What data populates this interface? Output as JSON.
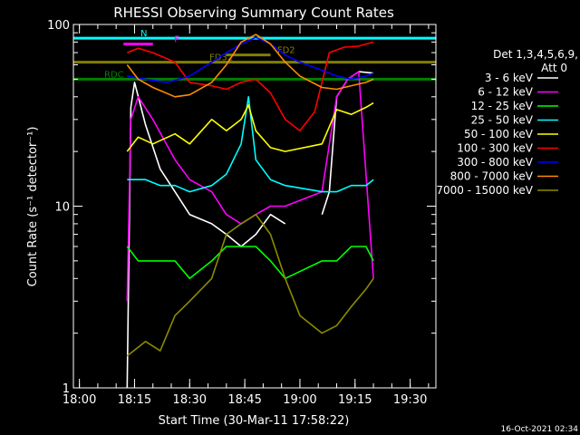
{
  "chart_data": {
    "type": "line",
    "title": "RHESSI Observing Summary Count Rates",
    "xlabel": "Start Time (30-Mar-11 17:58:22)",
    "ylabel": "Count Rate (s⁻¹ detector⁻¹)",
    "yscale": "log",
    "ylim": [
      1,
      100
    ],
    "xlim": [
      "17:58:22",
      "19:37:00"
    ],
    "x_ticks": [
      "18:00",
      "18:15",
      "18:30",
      "18:45",
      "19:00",
      "19:15",
      "19:30"
    ],
    "y_ticks": [
      "1",
      "10",
      "100"
    ],
    "legend_header": [
      "Det 1,3,4,5,6,9,",
      "Att 0"
    ],
    "legend_placement": "right",
    "timestamp": "16-Oct-2021 02:34",
    "grid": false,
    "series": [
      {
        "name": "3 - 6 keV",
        "color": "#ffffff",
        "points": [
          [
            "18:13",
            1.0
          ],
          [
            "18:14",
            35
          ],
          [
            "18:15",
            48
          ],
          [
            "18:18",
            28
          ],
          [
            "18:22",
            16
          ],
          [
            "18:26",
            12
          ],
          [
            "18:30",
            9
          ],
          [
            "18:36",
            8
          ],
          [
            "18:40",
            7
          ],
          [
            "18:44",
            6
          ],
          [
            "18:48",
            7
          ],
          [
            "18:52",
            9
          ],
          [
            "18:56",
            8
          ],
          [
            "19:00",
            null
          ],
          [
            "19:06",
            9
          ],
          [
            "19:08",
            12
          ],
          [
            "19:10",
            40
          ],
          [
            "19:13",
            50
          ],
          [
            "19:16",
            55
          ],
          [
            "19:20",
            54
          ]
        ]
      },
      {
        "name": "6 - 12 keV",
        "color": "#ff00ff",
        "points": [
          [
            "18:13",
            3
          ],
          [
            "18:14",
            30
          ],
          [
            "18:16",
            40
          ],
          [
            "18:20",
            30
          ],
          [
            "18:26",
            18
          ],
          [
            "18:30",
            14
          ],
          [
            "18:36",
            12
          ],
          [
            "18:40",
            9
          ],
          [
            "18:44",
            8
          ],
          [
            "18:48",
            9
          ],
          [
            "18:52",
            10
          ],
          [
            "18:56",
            10
          ],
          [
            "19:06",
            12
          ],
          [
            "19:10",
            40
          ],
          [
            "19:13",
            50
          ],
          [
            "19:16",
            55
          ],
          [
            "19:20",
            4
          ]
        ]
      },
      {
        "name": "12 - 25 keV",
        "color": "#00ff00",
        "points": [
          [
            "18:13",
            6
          ],
          [
            "18:16",
            5
          ],
          [
            "18:20",
            5
          ],
          [
            "18:26",
            5
          ],
          [
            "18:30",
            4
          ],
          [
            "18:36",
            5
          ],
          [
            "18:40",
            6
          ],
          [
            "18:44",
            6
          ],
          [
            "18:48",
            6
          ],
          [
            "18:52",
            5
          ],
          [
            "18:56",
            4
          ],
          [
            "19:06",
            5
          ],
          [
            "19:10",
            5
          ],
          [
            "19:14",
            6
          ],
          [
            "19:18",
            6
          ],
          [
            "19:20",
            5
          ]
        ]
      },
      {
        "name": "25 - 50 keV",
        "color": "#00ffff",
        "points": [
          [
            "18:13",
            14
          ],
          [
            "18:18",
            14
          ],
          [
            "18:22",
            13
          ],
          [
            "18:26",
            13
          ],
          [
            "18:30",
            12
          ],
          [
            "18:36",
            13
          ],
          [
            "18:40",
            15
          ],
          [
            "18:44",
            22
          ],
          [
            "18:46",
            40
          ],
          [
            "18:48",
            18
          ],
          [
            "18:52",
            14
          ],
          [
            "18:56",
            13
          ],
          [
            "19:06",
            12
          ],
          [
            "19:10",
            12
          ],
          [
            "19:14",
            13
          ],
          [
            "19:18",
            13
          ],
          [
            "19:20",
            14
          ]
        ]
      },
      {
        "name": "50 - 100 keV",
        "color": "#ffff00",
        "points": [
          [
            "18:13",
            20
          ],
          [
            "18:16",
            24
          ],
          [
            "18:20",
            22
          ],
          [
            "18:26",
            25
          ],
          [
            "18:30",
            22
          ],
          [
            "18:36",
            30
          ],
          [
            "18:40",
            26
          ],
          [
            "18:44",
            30
          ],
          [
            "18:46",
            36
          ],
          [
            "18:48",
            26
          ],
          [
            "18:52",
            21
          ],
          [
            "18:56",
            20
          ],
          [
            "19:06",
            22
          ],
          [
            "19:10",
            34
          ],
          [
            "19:14",
            32
          ],
          [
            "19:18",
            35
          ],
          [
            "19:20",
            37
          ]
        ]
      },
      {
        "name": "100 - 300 keV",
        "color": "#ff0000",
        "points": [
          [
            "18:13",
            70
          ],
          [
            "18:16",
            74
          ],
          [
            "18:20",
            70
          ],
          [
            "18:26",
            62
          ],
          [
            "18:30",
            48
          ],
          [
            "18:36",
            46
          ],
          [
            "18:40",
            44
          ],
          [
            "18:44",
            48
          ],
          [
            "18:48",
            50
          ],
          [
            "18:52",
            42
          ],
          [
            "18:56",
            30
          ],
          [
            "19:00",
            26
          ],
          [
            "19:04",
            33
          ],
          [
            "19:08",
            70
          ],
          [
            "19:12",
            75
          ],
          [
            "19:16",
            76
          ],
          [
            "19:20",
            80
          ]
        ]
      },
      {
        "name": "300 - 800 keV",
        "color": "#0000ff",
        "points": [
          [
            "18:13",
            52
          ],
          [
            "18:18",
            50
          ],
          [
            "18:24",
            48
          ],
          [
            "18:30",
            52
          ],
          [
            "18:36",
            62
          ],
          [
            "18:40",
            70
          ],
          [
            "18:44",
            78
          ],
          [
            "18:48",
            85
          ],
          [
            "18:52",
            78
          ],
          [
            "18:56",
            68
          ],
          [
            "19:00",
            62
          ],
          [
            "19:06",
            56
          ],
          [
            "19:10",
            52
          ],
          [
            "19:14",
            50
          ],
          [
            "19:18",
            52
          ],
          [
            "19:20",
            54
          ]
        ]
      },
      {
        "name": "800 - 7000 keV",
        "color": "#ff8c00",
        "points": [
          [
            "18:13",
            60
          ],
          [
            "18:16",
            50
          ],
          [
            "18:20",
            45
          ],
          [
            "18:26",
            40
          ],
          [
            "18:30",
            41
          ],
          [
            "18:36",
            48
          ],
          [
            "18:40",
            60
          ],
          [
            "18:44",
            80
          ],
          [
            "18:48",
            88
          ],
          [
            "18:52",
            78
          ],
          [
            "18:56",
            62
          ],
          [
            "19:00",
            52
          ],
          [
            "19:06",
            45
          ],
          [
            "19:10",
            44
          ],
          [
            "19:14",
            46
          ],
          [
            "19:18",
            48
          ],
          [
            "19:20",
            50
          ]
        ]
      },
      {
        "name": "7000 - 15000 keV",
        "color": "#8b8b00",
        "points": [
          [
            "18:13",
            1.5
          ],
          [
            "18:18",
            1.8
          ],
          [
            "18:22",
            1.6
          ],
          [
            "18:26",
            2.5
          ],
          [
            "18:30",
            3.0
          ],
          [
            "18:36",
            4
          ],
          [
            "18:40",
            7
          ],
          [
            "18:44",
            8
          ],
          [
            "18:48",
            9
          ],
          [
            "18:52",
            7
          ],
          [
            "18:56",
            4
          ],
          [
            "19:00",
            2.5
          ],
          [
            "19:06",
            2
          ],
          [
            "19:10",
            2.2
          ],
          [
            "19:14",
            2.8
          ],
          [
            "19:18",
            3.5
          ],
          [
            "19:20",
            4
          ]
        ]
      }
    ],
    "flag_bars": [
      {
        "label": "RDC",
        "color": "#008000",
        "y": 50,
        "start": "17:58:22",
        "end": "19:37:00"
      },
      {
        "label": "FD32",
        "color": "#808000",
        "y": 62,
        "start": "17:58:22",
        "end": "19:37:00"
      },
      {
        "label": "FD2",
        "color": "#808000",
        "y": 68,
        "start": "18:40",
        "end": "18:52"
      },
      {
        "label": "N",
        "color": "#00ffff",
        "y": 84,
        "start": "17:58:22",
        "end": "19:37:00"
      },
      {
        "label": "F",
        "color": "#ff00ff",
        "y": 78,
        "start": "18:12",
        "end": "18:20"
      }
    ],
    "flag_labels_visible": [
      "RDC",
      "FD32",
      "FD2",
      "N",
      "F"
    ]
  }
}
